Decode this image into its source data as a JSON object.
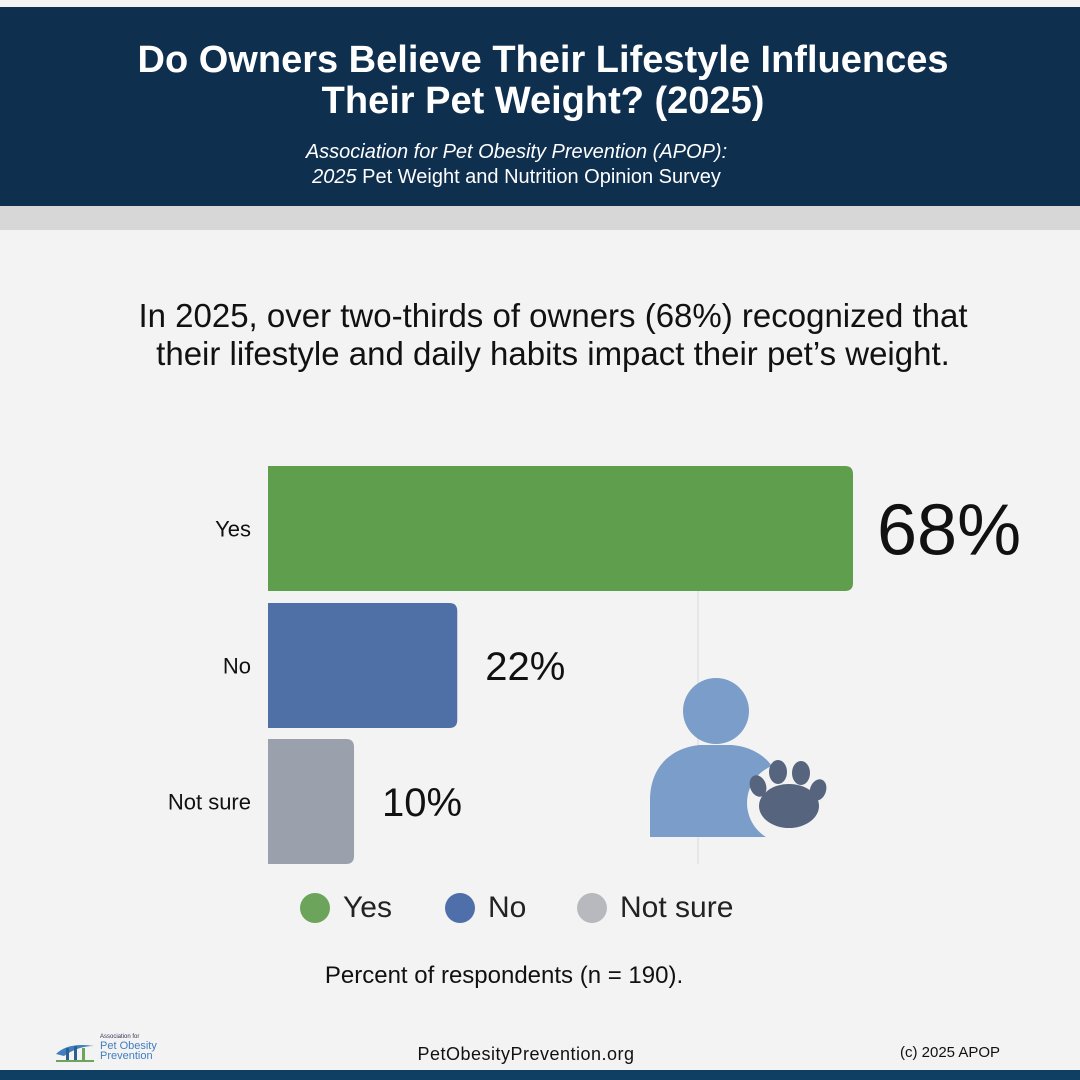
{
  "header": {
    "title": "Do Owners Believe Their Lifestyle Influences\nTheir Pet Weight? (2025)",
    "subtitle_org": "Association for Pet Obesity Prevention (APOP):",
    "subtitle_year": "2025",
    "subtitle_rest": " Pet Weight and Nutrition Opinion Survey",
    "background_color": "#0f2f4f"
  },
  "headline": "In 2025, over two-thirds of owners (68%) recognized that\ntheir lifestyle and daily habits impact their pet’s weight.",
  "chart_data": {
    "type": "bar",
    "orientation": "horizontal",
    "categories": [
      "Yes",
      "No",
      "Not sure"
    ],
    "values": [
      68,
      22,
      10
    ],
    "value_labels": [
      "68%",
      "22%",
      "10%"
    ],
    "colors": [
      "#5f9e4d",
      "#4f70a7",
      "#9aa1ac"
    ],
    "xlim": [
      0,
      68
    ],
    "grid": true,
    "legend": [
      "Yes",
      "No",
      "Not sure"
    ],
    "legend_colors": [
      "#6da45b",
      "#4f6faa",
      "#b7b9bf"
    ],
    "legend_position": "bottom"
  },
  "icon": {
    "name": "owner-with-paw-icon",
    "person_color": "#7b9dc9",
    "paw_color": "#56647d"
  },
  "caption": "Percent of respondents (n = 190).",
  "footer": {
    "logo_small": "Association for",
    "logo_line1": "Pet Obesity",
    "logo_line2": "Prevention",
    "website": "PetObesityPrevention.org",
    "copyright": "(c) 2025 APOP"
  }
}
